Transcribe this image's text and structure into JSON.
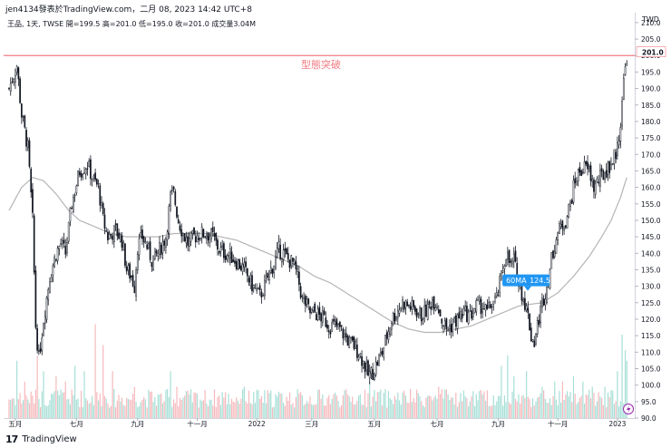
{
  "header": {
    "publish_line": "jen4134發表於TradingView.com，二月 08, 2023 14:42 UTC+8",
    "symbol_line": "王品, 1天, TWSE  開=199.5  高=201.0  低=195.0  收=201.0  成交量3.04M",
    "currency": "TWD"
  },
  "footer": {
    "logo": "17",
    "brand": "TradingView"
  },
  "chart_data": {
    "type": "candlestick",
    "currency": "TWD",
    "y_ticks": [
      "90.0",
      "95.0",
      "100.0",
      "105.0",
      "110.0",
      "115.0",
      "120.0",
      "125.0",
      "130.0",
      "135.0",
      "140.0",
      "145.0",
      "150.0",
      "155.0",
      "160.0",
      "165.0",
      "170.0",
      "175.0",
      "180.0",
      "185.0",
      "190.0",
      "195.0",
      "200.0",
      "205.0",
      "210.0"
    ],
    "ylim": [
      90,
      213
    ],
    "x_ticks": [
      "五月",
      "七月",
      "九月",
      "十一月",
      "2022",
      "三月",
      "五月",
      "七月",
      "九月",
      "十一月",
      "2023"
    ],
    "x_tick_pos": [
      4,
      43,
      82,
      120,
      158,
      193,
      233,
      273,
      312,
      350,
      388
    ],
    "n_bars": 395,
    "last_price": "201.0",
    "price_line": 200.0,
    "annotation": "型態突破",
    "ma_label": "60MA",
    "ma_value": "124.5",
    "price_path": [
      [
        0,
        190
      ],
      [
        5,
        197
      ],
      [
        8,
        182
      ],
      [
        12,
        172
      ],
      [
        15,
        150
      ],
      [
        17,
        118
      ],
      [
        19,
        108
      ],
      [
        22,
        120
      ],
      [
        26,
        133
      ],
      [
        30,
        140
      ],
      [
        33,
        143
      ],
      [
        36,
        140
      ],
      [
        40,
        155
      ],
      [
        45,
        165
      ],
      [
        50,
        167
      ],
      [
        54,
        162
      ],
      [
        57,
        160
      ],
      [
        60,
        150
      ],
      [
        63,
        145
      ],
      [
        68,
        147
      ],
      [
        72,
        144
      ],
      [
        75,
        135
      ],
      [
        78,
        133
      ],
      [
        80,
        130
      ],
      [
        82,
        142
      ],
      [
        85,
        145
      ],
      [
        88,
        142
      ],
      [
        91,
        138
      ],
      [
        95,
        140
      ],
      [
        100,
        145
      ],
      [
        103,
        157
      ],
      [
        105,
        158
      ],
      [
        108,
        150
      ],
      [
        111,
        146
      ],
      [
        114,
        143
      ],
      [
        118,
        145
      ],
      [
        122,
        146
      ],
      [
        126,
        146
      ],
      [
        130,
        145
      ],
      [
        134,
        141
      ],
      [
        138,
        140
      ],
      [
        142,
        139
      ],
      [
        146,
        137
      ],
      [
        150,
        135
      ],
      [
        154,
        131
      ],
      [
        157,
        129
      ],
      [
        160,
        127
      ],
      [
        163,
        130
      ],
      [
        166,
        134
      ],
      [
        170,
        138
      ],
      [
        172,
        141
      ],
      [
        175,
        140
      ],
      [
        178,
        138
      ],
      [
        181,
        137
      ],
      [
        184,
        133
      ],
      [
        187,
        126
      ],
      [
        190,
        124
      ],
      [
        192,
        122
      ],
      [
        195,
        122
      ],
      [
        198,
        121
      ],
      [
        201,
        120
      ],
      [
        204,
        118
      ],
      [
        207,
        118
      ],
      [
        211,
        117
      ],
      [
        214,
        115
      ],
      [
        217,
        113
      ],
      [
        220,
        112
      ],
      [
        223,
        110
      ],
      [
        226,
        107
      ],
      [
        229,
        103
      ],
      [
        232,
        104
      ],
      [
        235,
        107
      ],
      [
        238,
        110
      ],
      [
        241,
        115
      ],
      [
        244,
        120
      ],
      [
        247,
        122
      ],
      [
        251,
        125
      ],
      [
        255,
        124
      ],
      [
        259,
        123
      ],
      [
        263,
        121
      ],
      [
        267,
        123
      ],
      [
        270,
        126
      ],
      [
        273,
        125
      ],
      [
        276,
        120
      ],
      [
        279,
        117
      ],
      [
        282,
        118
      ],
      [
        286,
        120
      ],
      [
        290,
        122
      ],
      [
        294,
        121
      ],
      [
        298,
        124
      ],
      [
        302,
        124
      ],
      [
        305,
        122
      ],
      [
        308,
        125
      ],
      [
        311,
        126
      ],
      [
        314,
        133
      ],
      [
        317,
        140
      ],
      [
        320,
        136
      ],
      [
        322,
        138
      ],
      [
        324,
        133
      ],
      [
        327,
        128
      ],
      [
        329,
        125
      ],
      [
        331,
        121
      ],
      [
        333,
        115
      ],
      [
        335,
        113
      ],
      [
        337,
        118
      ],
      [
        340,
        125
      ],
      [
        343,
        130
      ],
      [
        346,
        138
      ],
      [
        349,
        145
      ],
      [
        352,
        148
      ],
      [
        355,
        150
      ],
      [
        358,
        155
      ],
      [
        361,
        162
      ],
      [
        364,
        165
      ],
      [
        367,
        166
      ],
      [
        370,
        165
      ],
      [
        373,
        160
      ],
      [
        376,
        162
      ],
      [
        379,
        164
      ],
      [
        382,
        166
      ],
      [
        385,
        168
      ],
      [
        388,
        172
      ],
      [
        390,
        180
      ],
      [
        391,
        187
      ],
      [
        392,
        192
      ],
      [
        393,
        196
      ],
      [
        394,
        200
      ]
    ],
    "ma_path": [
      [
        0,
        153
      ],
      [
        8,
        160
      ],
      [
        15,
        163
      ],
      [
        22,
        162
      ],
      [
        30,
        158
      ],
      [
        38,
        153
      ],
      [
        45,
        150
      ],
      [
        55,
        148
      ],
      [
        65,
        146
      ],
      [
        75,
        145
      ],
      [
        85,
        145
      ],
      [
        95,
        145
      ],
      [
        105,
        146
      ],
      [
        115,
        146
      ],
      [
        125,
        146
      ],
      [
        135,
        145
      ],
      [
        145,
        144
      ],
      [
        155,
        142
      ],
      [
        165,
        140
      ],
      [
        175,
        138
      ],
      [
        185,
        136
      ],
      [
        195,
        133
      ],
      [
        205,
        131
      ],
      [
        215,
        128
      ],
      [
        225,
        125
      ],
      [
        235,
        122
      ],
      [
        245,
        119
      ],
      [
        255,
        117
      ],
      [
        265,
        116
      ],
      [
        275,
        116
      ],
      [
        285,
        117
      ],
      [
        295,
        118
      ],
      [
        305,
        120
      ],
      [
        315,
        122
      ],
      [
        325,
        124
      ],
      [
        332,
        124.5
      ],
      [
        340,
        125
      ],
      [
        350,
        128
      ],
      [
        360,
        133
      ],
      [
        370,
        139
      ],
      [
        378,
        145
      ],
      [
        384,
        150
      ],
      [
        390,
        157
      ],
      [
        394,
        163
      ]
    ],
    "volume_spikes": [
      [
        5,
        0.55
      ],
      [
        10,
        0.35
      ],
      [
        18,
        0.6
      ],
      [
        22,
        0.45
      ],
      [
        30,
        0.4
      ],
      [
        36,
        0.35
      ],
      [
        42,
        0.5
      ],
      [
        48,
        0.45
      ],
      [
        55,
        0.9
      ],
      [
        60,
        0.7
      ],
      [
        66,
        0.45
      ],
      [
        80,
        0.3
      ],
      [
        103,
        0.45
      ],
      [
        107,
        0.3
      ],
      [
        136,
        0.25
      ],
      [
        150,
        0.3
      ],
      [
        186,
        0.25
      ],
      [
        230,
        0.35
      ],
      [
        235,
        0.25
      ],
      [
        274,
        0.3
      ],
      [
        314,
        0.5
      ],
      [
        318,
        0.6
      ],
      [
        322,
        0.4
      ],
      [
        330,
        0.45
      ],
      [
        340,
        0.3
      ],
      [
        348,
        0.35
      ],
      [
        353,
        0.35
      ],
      [
        360,
        0.4
      ],
      [
        366,
        0.35
      ],
      [
        372,
        0.3
      ],
      [
        380,
        0.3
      ],
      [
        388,
        0.45
      ],
      [
        391,
        0.8
      ],
      [
        393,
        0.65
      ],
      [
        394,
        0.55
      ]
    ]
  }
}
